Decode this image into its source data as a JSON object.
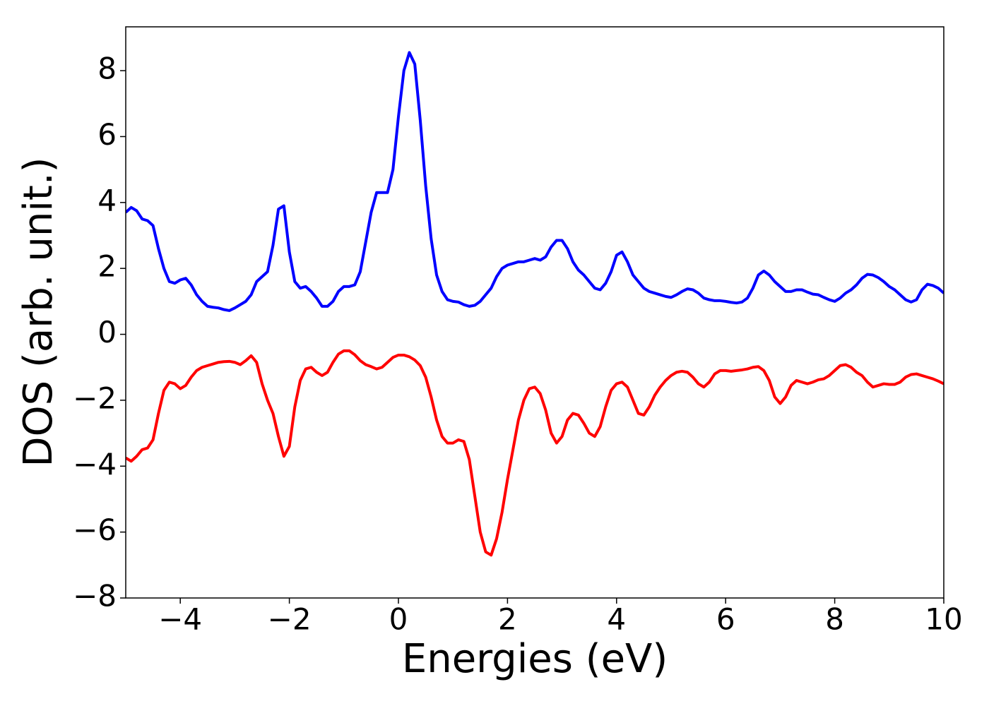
{
  "chart_data": {
    "type": "line",
    "xlabel": "Energies (eV)",
    "ylabel": "DOS (arb. unit.)",
    "x": [
      -5,
      -4.9,
      -4.8,
      -4.7,
      -4.6,
      -4.5,
      -4.4,
      -4.3,
      -4.2,
      -4.1,
      -4,
      -3.9,
      -3.8,
      -3.7,
      -3.6,
      -3.5,
      -3.4,
      -3.3,
      -3.2,
      -3.1,
      -3,
      -2.9,
      -2.8,
      -2.7,
      -2.6,
      -2.5,
      -2.4,
      -2.3,
      -2.2,
      -2.1,
      -2,
      -1.9,
      -1.8,
      -1.7,
      -1.6,
      -1.5,
      -1.4,
      -1.3,
      -1.2,
      -1.1,
      -1,
      -0.9,
      -0.8,
      -0.7,
      -0.6,
      -0.5,
      -0.4,
      -0.3,
      -0.2,
      -0.1,
      0,
      0.1,
      0.2,
      0.3,
      0.4,
      0.5,
      0.6,
      0.7,
      0.8,
      0.9,
      1,
      1.1,
      1.2,
      1.3,
      1.4,
      1.5,
      1.6,
      1.7,
      1.8,
      1.9,
      2,
      2.1,
      2.2,
      2.3,
      2.4,
      2.5,
      2.6,
      2.7,
      2.8,
      2.9,
      3,
      3.1,
      3.2,
      3.3,
      3.4,
      3.5,
      3.6,
      3.7,
      3.8,
      3.9,
      4,
      4.1,
      4.2,
      4.3,
      4.4,
      4.5,
      4.6,
      4.7,
      4.8,
      4.9,
      5,
      5.1,
      5.2,
      5.3,
      5.4,
      5.5,
      5.6,
      5.7,
      5.8,
      5.9,
      6,
      6.1,
      6.2,
      6.3,
      6.4,
      6.5,
      6.6,
      6.7,
      6.8,
      6.9,
      7,
      7.1,
      7.2,
      7.3,
      7.4,
      7.5,
      7.6,
      7.7,
      7.8,
      7.9,
      8,
      8.1,
      8.2,
      8.3,
      8.4,
      8.5,
      8.6,
      8.7,
      8.8,
      8.9,
      9,
      9.1,
      9.2,
      9.3,
      9.4,
      9.5,
      9.6,
      9.7,
      9.8,
      9.9,
      10
    ],
    "series": [
      {
        "color": "#0000ff",
        "values": [
          3.7,
          3.85,
          3.75,
          3.5,
          3.45,
          3.3,
          2.6,
          2.0,
          1.6,
          1.55,
          1.65,
          1.7,
          1.5,
          1.2,
          1.0,
          0.85,
          0.82,
          0.8,
          0.75,
          0.72,
          0.8,
          0.9,
          1.0,
          1.2,
          1.6,
          1.75,
          1.9,
          2.7,
          3.8,
          3.9,
          2.5,
          1.6,
          1.4,
          1.45,
          1.3,
          1.1,
          0.85,
          0.85,
          1.0,
          1.3,
          1.45,
          1.45,
          1.5,
          1.9,
          2.8,
          3.7,
          4.3,
          4.3,
          4.3,
          5.0,
          6.6,
          8.0,
          8.55,
          8.2,
          6.5,
          4.5,
          2.9,
          1.8,
          1.3,
          1.05,
          1.0,
          0.98,
          0.9,
          0.85,
          0.88,
          1.0,
          1.2,
          1.4,
          1.75,
          2.0,
          2.1,
          2.15,
          2.2,
          2.2,
          2.25,
          2.3,
          2.25,
          2.35,
          2.65,
          2.85,
          2.85,
          2.6,
          2.2,
          1.95,
          1.8,
          1.6,
          1.4,
          1.35,
          1.55,
          1.9,
          2.4,
          2.5,
          2.2,
          1.8,
          1.6,
          1.4,
          1.3,
          1.25,
          1.2,
          1.15,
          1.12,
          1.2,
          1.3,
          1.38,
          1.35,
          1.25,
          1.1,
          1.05,
          1.02,
          1.02,
          1.0,
          0.97,
          0.95,
          0.98,
          1.1,
          1.4,
          1.8,
          1.92,
          1.8,
          1.6,
          1.45,
          1.3,
          1.3,
          1.35,
          1.35,
          1.28,
          1.22,
          1.2,
          1.12,
          1.05,
          1.0,
          1.1,
          1.25,
          1.35,
          1.5,
          1.7,
          1.82,
          1.8,
          1.72,
          1.6,
          1.45,
          1.35,
          1.2,
          1.05,
          0.98,
          1.05,
          1.35,
          1.52,
          1.48,
          1.4,
          1.25
        ]
      },
      {
        "color": "#ff0000",
        "values": [
          -3.75,
          -3.85,
          -3.7,
          -3.5,
          -3.45,
          -3.2,
          -2.4,
          -1.7,
          -1.45,
          -1.5,
          -1.65,
          -1.55,
          -1.3,
          -1.1,
          -1.0,
          -0.95,
          -0.9,
          -0.85,
          -0.83,
          -0.82,
          -0.85,
          -0.92,
          -0.8,
          -0.65,
          -0.85,
          -1.5,
          -2.0,
          -2.4,
          -3.1,
          -3.7,
          -3.4,
          -2.2,
          -1.4,
          -1.05,
          -1.0,
          -1.15,
          -1.25,
          -1.15,
          -0.85,
          -0.6,
          -0.5,
          -0.5,
          -0.62,
          -0.8,
          -0.92,
          -0.98,
          -1.05,
          -1.0,
          -0.85,
          -0.7,
          -0.63,
          -0.63,
          -0.68,
          -0.78,
          -0.95,
          -1.3,
          -1.9,
          -2.6,
          -3.1,
          -3.3,
          -3.3,
          -3.2,
          -3.25,
          -3.8,
          -4.9,
          -6.0,
          -6.6,
          -6.7,
          -6.2,
          -5.4,
          -4.4,
          -3.5,
          -2.6,
          -2.0,
          -1.65,
          -1.6,
          -1.8,
          -2.3,
          -3.0,
          -3.3,
          -3.1,
          -2.6,
          -2.4,
          -2.45,
          -2.7,
          -3.0,
          -3.1,
          -2.8,
          -2.2,
          -1.7,
          -1.5,
          -1.45,
          -1.6,
          -2.0,
          -2.4,
          -2.45,
          -2.2,
          -1.85,
          -1.6,
          -1.4,
          -1.25,
          -1.15,
          -1.12,
          -1.15,
          -1.3,
          -1.5,
          -1.6,
          -1.45,
          -1.2,
          -1.1,
          -1.1,
          -1.12,
          -1.1,
          -1.08,
          -1.05,
          -1.0,
          -0.98,
          -1.1,
          -1.4,
          -1.9,
          -2.1,
          -1.9,
          -1.55,
          -1.4,
          -1.45,
          -1.5,
          -1.45,
          -1.38,
          -1.35,
          -1.25,
          -1.1,
          -0.95,
          -0.92,
          -1.0,
          -1.15,
          -1.25,
          -1.45,
          -1.6,
          -1.55,
          -1.5,
          -1.52,
          -1.52,
          -1.45,
          -1.3,
          -1.22,
          -1.2,
          -1.25,
          -1.3,
          -1.35,
          -1.42,
          -1.5
        ]
      }
    ],
    "xlim": [
      -5,
      10
    ],
    "ylim": [
      -8,
      9.33
    ],
    "xticks": [
      {
        "value": -4,
        "label": "−4"
      },
      {
        "value": -2,
        "label": "−2"
      },
      0,
      2,
      4,
      6,
      8,
      10
    ],
    "yticks": [
      {
        "value": -8,
        "label": "−8"
      },
      {
        "value": -6,
        "label": "−6"
      },
      {
        "value": -4,
        "label": "−4"
      },
      {
        "value": -2,
        "label": "−2"
      },
      0,
      2,
      4,
      6,
      8
    ],
    "grid": false
  }
}
